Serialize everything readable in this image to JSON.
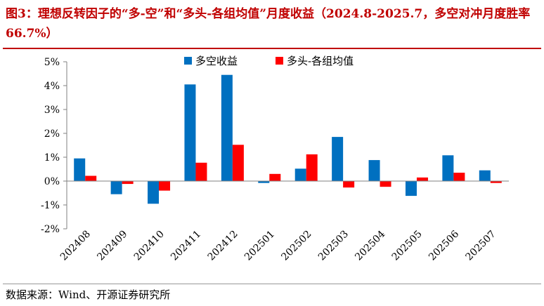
{
  "title": "图3：理想反转因子的“多-空”和“多头-各组均值”月度收益（2024.8-2025.7，多空对冲月度胜率 66.7%）",
  "source": "数据来源：Wind、开源证券研究所",
  "colors": {
    "title": "#c00000",
    "series1": "#0070c0",
    "series2": "#ff0000",
    "axis": "#808080"
  },
  "chart_data": {
    "type": "bar",
    "categories": [
      "202408",
      "202409",
      "202410",
      "202411",
      "202412",
      "202501",
      "202502",
      "202503",
      "202504",
      "202505",
      "202506",
      "202507"
    ],
    "series": [
      {
        "name": "多空收益",
        "color": "#0070c0",
        "values": [
          0.95,
          -0.55,
          -0.95,
          4.05,
          4.45,
          -0.08,
          0.52,
          1.85,
          0.88,
          -0.62,
          1.08,
          0.45
        ]
      },
      {
        "name": "多头-各组均值",
        "color": "#ff0000",
        "values": [
          0.22,
          -0.12,
          -0.4,
          0.77,
          1.52,
          0.3,
          1.12,
          -0.27,
          -0.24,
          0.15,
          0.35,
          -0.08
        ]
      }
    ],
    "ylim": [
      -2,
      5
    ],
    "yticks": [
      "-2%",
      "-1%",
      "0%",
      "1%",
      "2%",
      "3%",
      "4%",
      "5%"
    ],
    "ytick_values": [
      -2,
      -1,
      0,
      1,
      2,
      3,
      4,
      5
    ],
    "legend_position": "top-center",
    "grid": false
  }
}
